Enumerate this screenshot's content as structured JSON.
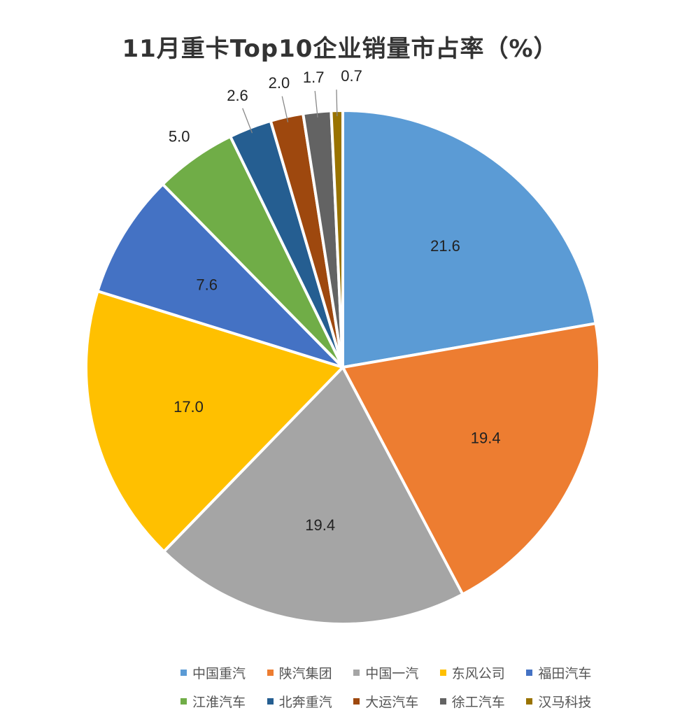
{
  "chart_data": {
    "type": "pie",
    "title": "11月重卡Top10企业销量市占率（%）",
    "categories": [
      "中国重汽",
      "陕汽集团",
      "中国一汽",
      "东风公司",
      "福田汽车",
      "江淮汽车",
      "北奔重汽",
      "大运汽车",
      "徐工汽车",
      "汉马科技"
    ],
    "values": [
      21.6,
      19.4,
      19.4,
      17.0,
      7.6,
      5.0,
      2.6,
      2.0,
      1.7,
      0.7
    ],
    "data_labels": [
      "21.6",
      "19.4",
      "19.4",
      "17.0",
      "7.6",
      "5.0",
      "2.6",
      "2.0",
      "1.7",
      "0.7"
    ],
    "colors": [
      "#5B9BD5",
      "#ED7D31",
      "#A5A5A5",
      "#FFC000",
      "#4472C4",
      "#70AD47",
      "#255E91",
      "#9E480E",
      "#636363",
      "#997300"
    ],
    "start_angle": "12 o'clock",
    "direction": "clockwise",
    "legend_position": "bottom"
  }
}
